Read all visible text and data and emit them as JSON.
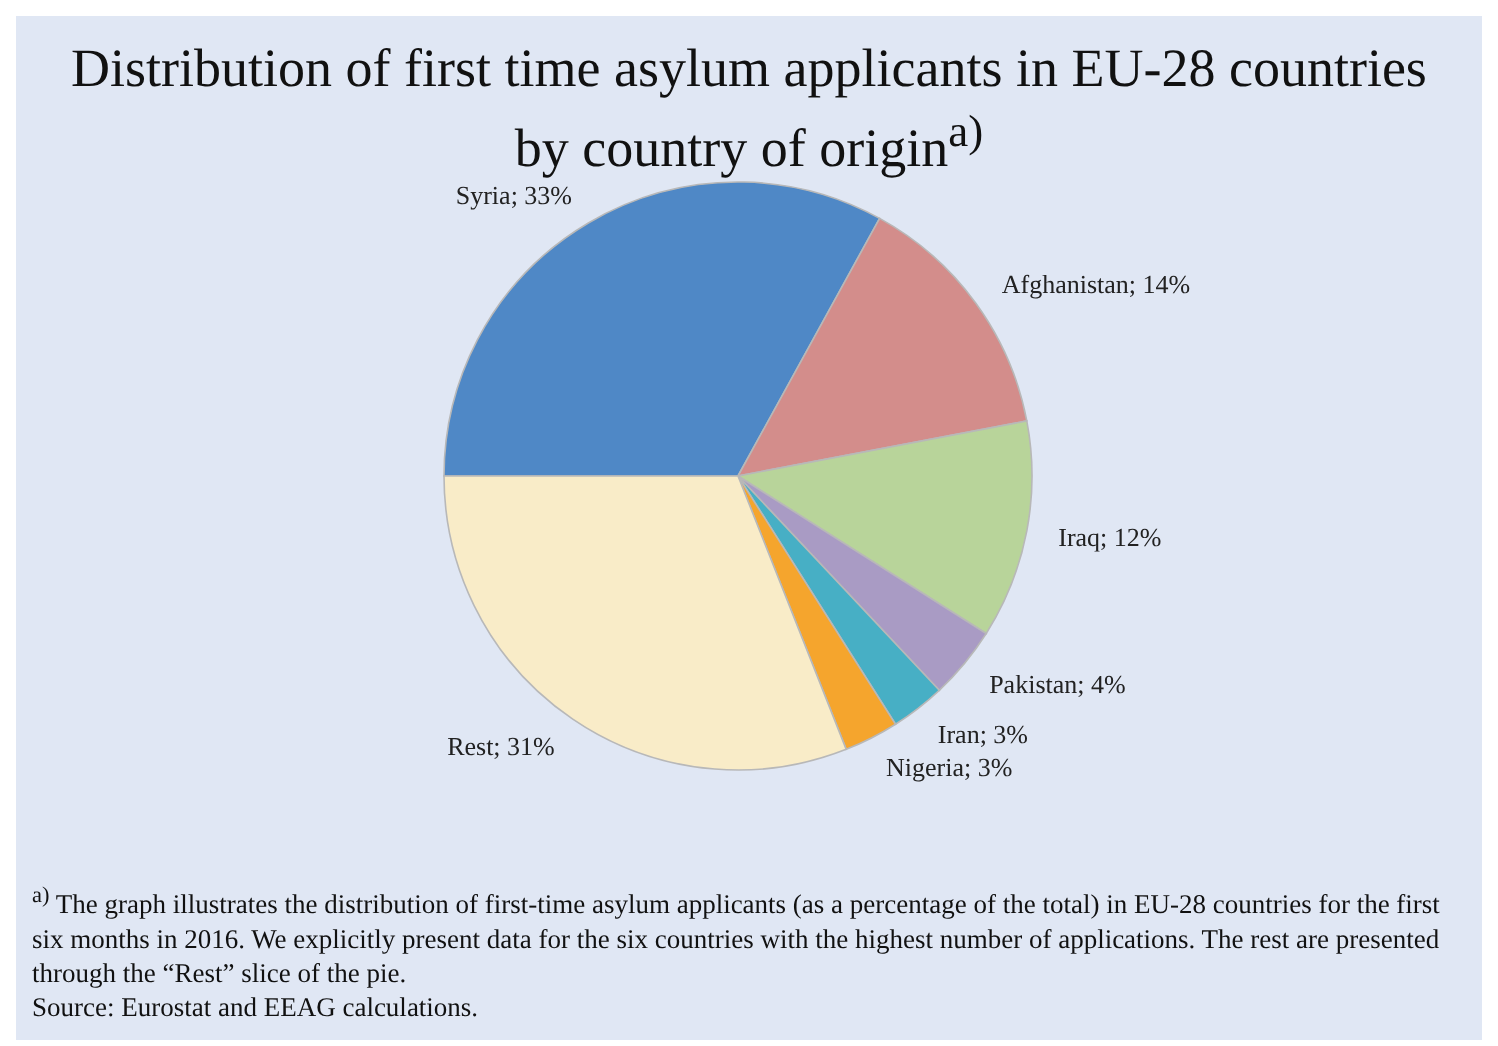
{
  "chart_data": {
    "type": "pie",
    "title": "Distribution of first time asylum applicants in EU-28 countries by country of origin$^{a)}$",
    "categories": [
      "Syria",
      "Afghanistan",
      "Iraq",
      "Pakistan",
      "Iran",
      "Nigeria",
      "Rest"
    ],
    "values": [
      33,
      14,
      12,
      4,
      3,
      3,
      31
    ],
    "value_labels": [
      "33%",
      "14%",
      "12%",
      "4%",
      "3%",
      "3%",
      "31%"
    ],
    "colors": [
      "#4f88c6",
      "#d38d8b",
      "#b8d49a",
      "#a99bc4",
      "#47afc5",
      "#f5a52d",
      "#f9ecc8"
    ],
    "annotations": [
      "$^{a)}$ The graph illustrates the distribution of first-time asylum applicants (as a percentage of the total) in EU-28 countries for the first six months in 2016. We explicitly present data for the six countries with the highest number of applications. The rest are presented through the “Rest” slice of the pie.",
      "Source: Eurostat and EEAG calculations."
    ]
  }
}
